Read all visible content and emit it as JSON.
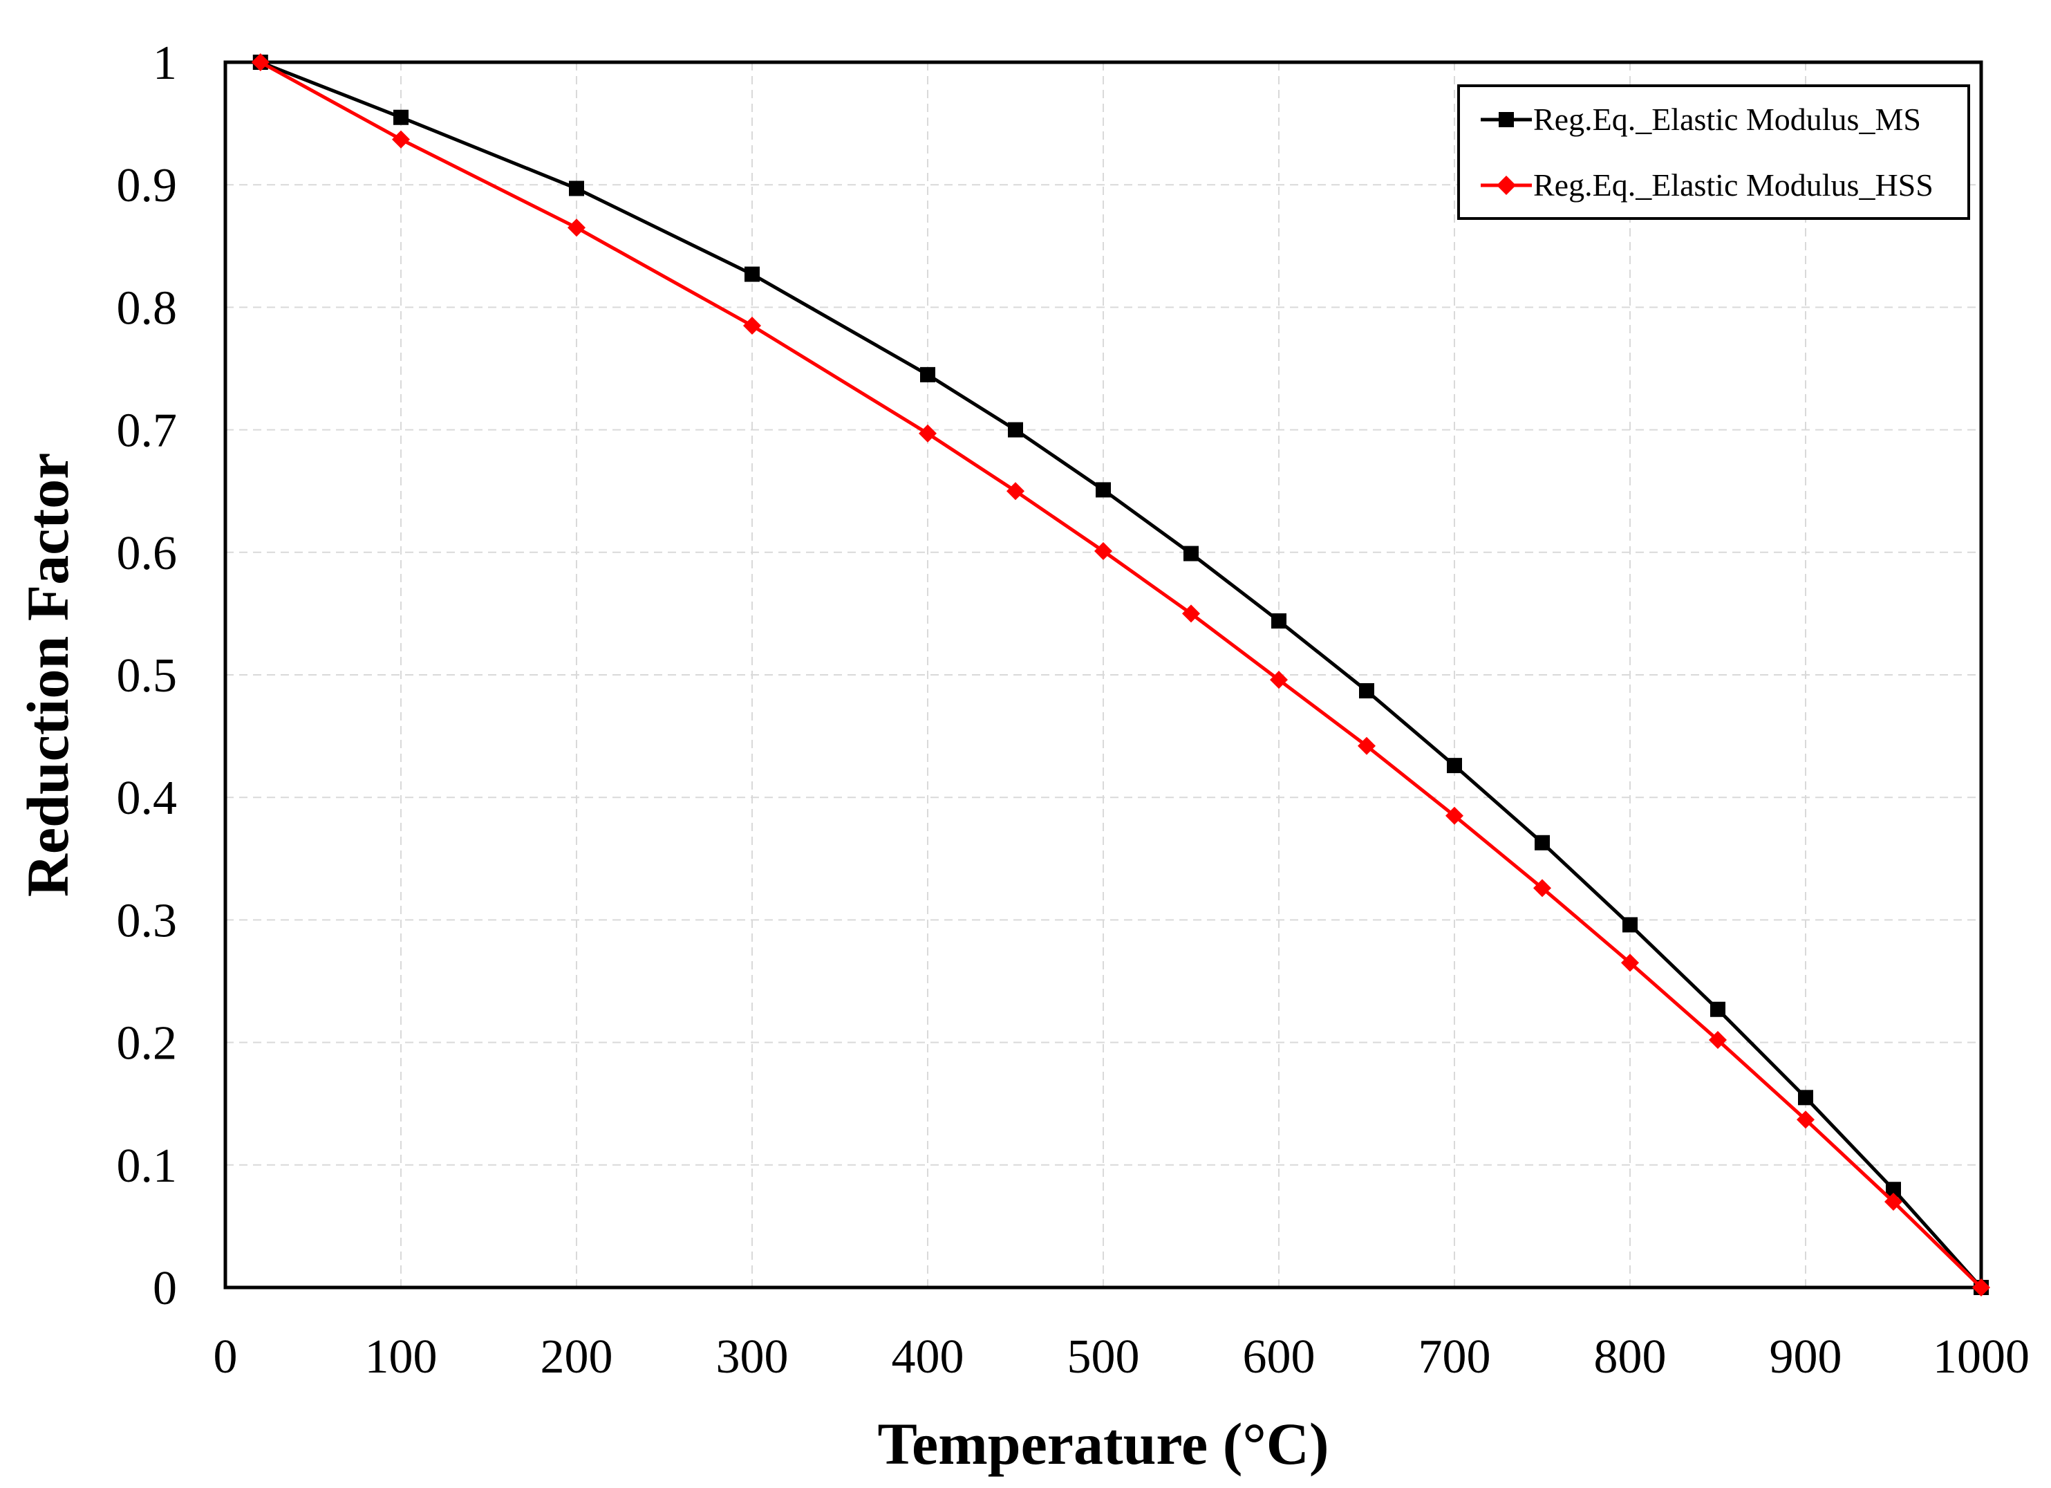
{
  "chart_data": {
    "type": "line",
    "title": "",
    "xlabel": "Temperature (°C)",
    "ylabel": "Reduction Factor",
    "xlim": [
      0,
      1000
    ],
    "ylim": [
      0,
      1
    ],
    "grid": true,
    "legend_position": "top-right",
    "x_ticks": [
      0,
      100,
      200,
      300,
      400,
      500,
      600,
      700,
      800,
      900,
      1000
    ],
    "x_tick_labels": [
      "0",
      "100",
      "200",
      "300",
      "400",
      "500",
      "600",
      "700",
      "800",
      "900",
      "1000"
    ],
    "y_ticks": [
      0,
      0.1,
      0.2,
      0.3,
      0.4,
      0.5,
      0.6,
      0.7,
      0.8,
      0.9,
      1
    ],
    "y_tick_labels": [
      "0",
      "0.1",
      "0.2",
      "0.3",
      "0.4",
      "0.5",
      "0.6",
      "0.7",
      "0.8",
      "0.9",
      "1"
    ],
    "series": [
      {
        "name": "Reg.Eq._Elastic Modulus_MS",
        "color": "#000000",
        "marker": "square",
        "x": [
          20,
          100,
          200,
          300,
          400,
          450,
          500,
          550,
          600,
          650,
          700,
          750,
          800,
          850,
          900,
          950,
          1000
        ],
        "y": [
          1.0,
          0.955,
          0.897,
          0.827,
          0.745,
          0.7,
          0.651,
          0.599,
          0.544,
          0.487,
          0.426,
          0.363,
          0.296,
          0.227,
          0.155,
          0.08,
          0.0
        ]
      },
      {
        "name": "Reg.Eq._Elastic Modulus_HSS",
        "color": "#ff0000",
        "marker": "diamond",
        "x": [
          20,
          100,
          200,
          300,
          400,
          450,
          500,
          550,
          600,
          650,
          700,
          750,
          800,
          850,
          900,
          950,
          1000
        ],
        "y": [
          1.0,
          0.937,
          0.865,
          0.785,
          0.697,
          0.65,
          0.601,
          0.55,
          0.496,
          0.442,
          0.385,
          0.326,
          0.265,
          0.202,
          0.137,
          0.07,
          0.0
        ]
      }
    ]
  }
}
